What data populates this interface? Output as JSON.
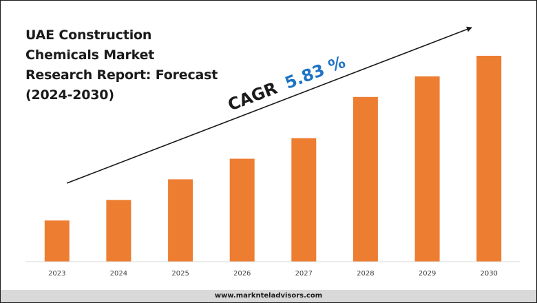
{
  "chart_data": {
    "type": "bar",
    "title": "UAE Construction\nChemicals Market\nResearch Report: Forecast\n(2024-2030)",
    "categories": [
      "2023",
      "2024",
      "2025",
      "2026",
      "2027",
      "2028",
      "2029",
      "2030"
    ],
    "series": [
      {
        "values": [
          60,
          90,
          120,
          150,
          180,
          240,
          270,
          300
        ]
      }
    ],
    "ylim": [
      0,
      300
    ],
    "grid": false,
    "annotation": {
      "label": "CAGR",
      "value": "5.83 %"
    },
    "colors": {
      "bar": "#ed7d31",
      "cagr_value": "#1f73c4",
      "text": "#1a1a1a"
    }
  },
  "footer": {
    "website": "www.marknteladvisors.com"
  }
}
